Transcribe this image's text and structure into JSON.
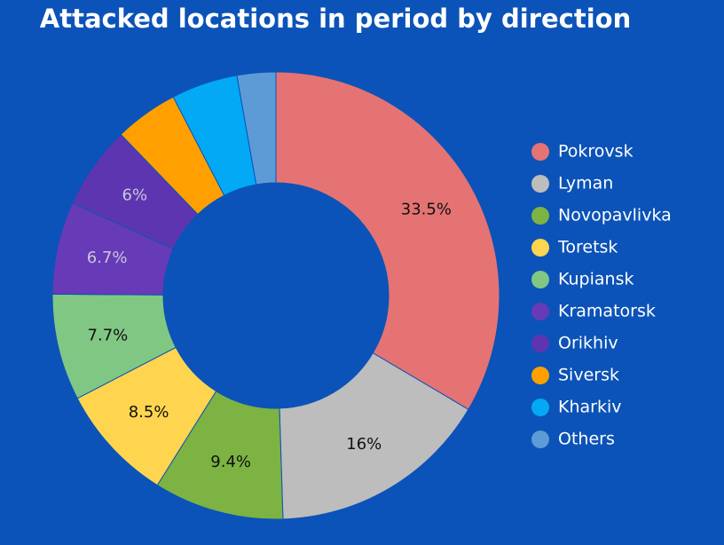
{
  "chart_data": {
    "type": "donut",
    "title": "Attacked locations in period by direction",
    "categories": [
      "Pokrovsk",
      "Lyman",
      "Novopavlivka",
      "Toretsk",
      "Kupiansk",
      "Kramatorsk",
      "Orikhiv",
      "Siversk",
      "Kharkiv",
      "Others"
    ],
    "values": [
      33.5,
      16,
      9.4,
      8.5,
      7.7,
      6.7,
      6,
      4.6,
      4.8,
      2.8
    ],
    "value_labels": [
      "33.5%",
      "16%",
      "9.4%",
      "8.5%",
      "7.7%",
      "6.7%",
      "6%",
      null,
      null,
      null
    ],
    "colors": [
      "#e57373",
      "#bdbdbd",
      "#7cb342",
      "#ffd54f",
      "#81c784",
      "#673ab7",
      "#5e35b1",
      "#ffa000",
      "#03a9f4",
      "#5c9bd6"
    ],
    "legend": "right"
  }
}
